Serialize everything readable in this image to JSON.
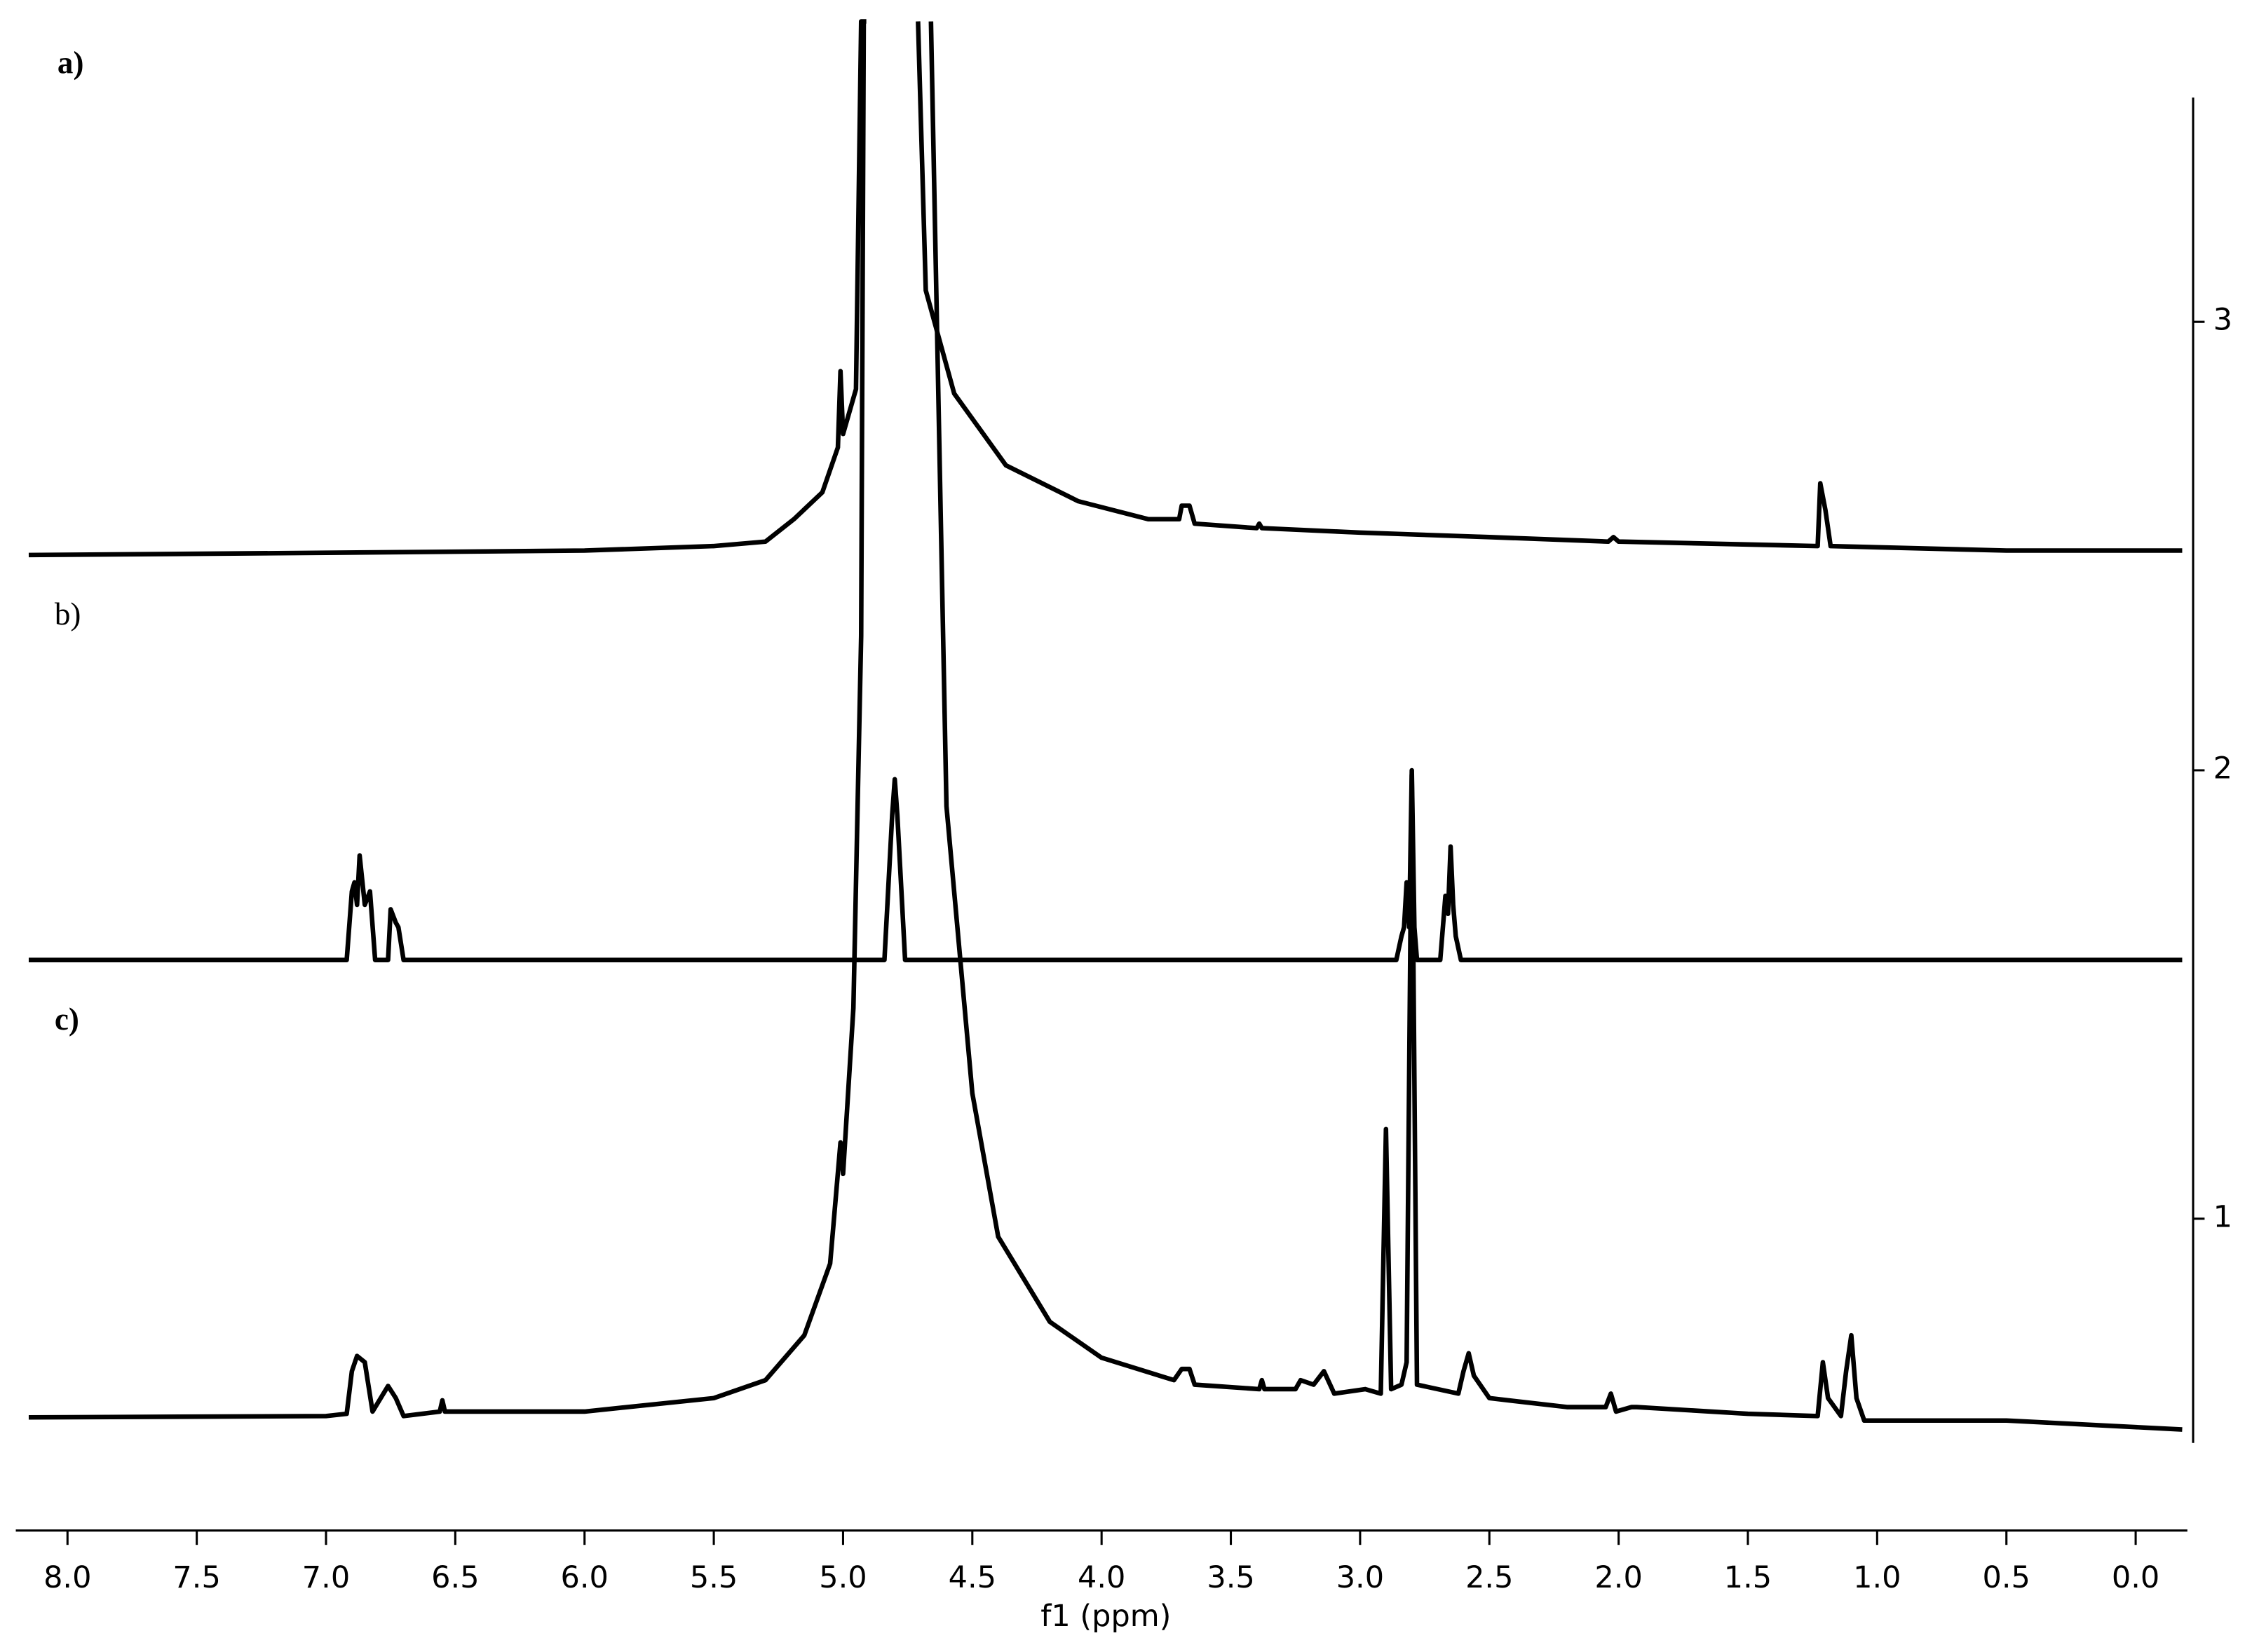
{
  "chart_data": {
    "type": "line",
    "xlabel": "f1 (ppm)",
    "xlim": [
      8.2,
      -0.2
    ],
    "ylim": [
      0.5,
      3.5
    ],
    "yaxis_position": "right",
    "grid": false,
    "xticks": [
      {
        "value": 8,
        "label": "8.0"
      },
      {
        "value": 7.5,
        "label": "7.5"
      },
      {
        "value": 7,
        "label": "7.0"
      },
      {
        "value": 6.5,
        "label": "6.5"
      },
      {
        "value": 6,
        "label": "6.0"
      },
      {
        "value": 5.5,
        "label": "5.5"
      },
      {
        "value": 5,
        "label": "5.0"
      },
      {
        "value": 4.5,
        "label": "4.5"
      },
      {
        "value": 4,
        "label": "4.0"
      },
      {
        "value": 3.5,
        "label": "3.5"
      },
      {
        "value": 3,
        "label": "3.0"
      },
      {
        "value": 2.5,
        "label": "2.5"
      },
      {
        "value": 2,
        "label": "2.0"
      },
      {
        "value": 1.5,
        "label": "1.5"
      },
      {
        "value": 1,
        "label": "1.0"
      },
      {
        "value": 0.5,
        "label": "0.5"
      },
      {
        "value": 0,
        "label": "0.0"
      }
    ],
    "yticks": [
      1,
      2,
      3
    ],
    "series": [
      {
        "name": "a)",
        "color": "#000000",
        "x": [
          8.15,
          7.0,
          6.0,
          5.5,
          5.3,
          5.19,
          5.08,
          5.02,
          5.01,
          5.0,
          4.95,
          4.93,
          4.91,
          4.8,
          4.71,
          4.68,
          4.57,
          4.37,
          4.09,
          3.82,
          3.7,
          3.69,
          3.66,
          3.64,
          3.4,
          3.39,
          3.38,
          3.0,
          2.5,
          2.04,
          2.02,
          2.0,
          1.23,
          1.22,
          1.2,
          1.18,
          0.5,
          -0.18
        ],
        "values": [
          2.48,
          2.485,
          2.49,
          2.5,
          2.51,
          2.56,
          2.62,
          2.72,
          2.89,
          2.75,
          2.85,
          3.67,
          3.67,
          null,
          3.67,
          3.07,
          2.84,
          2.68,
          2.6,
          2.56,
          2.56,
          2.59,
          2.59,
          2.55,
          2.54,
          2.55,
          2.54,
          2.53,
          2.52,
          2.51,
          2.52,
          2.51,
          2.5,
          2.64,
          2.58,
          2.5,
          2.49,
          2.49
        ]
      },
      {
        "name": "b)",
        "color": "#000000",
        "x": [
          8.15,
          6.92,
          6.9,
          6.89,
          6.88,
          6.87,
          6.85,
          6.83,
          6.81,
          6.76,
          6.75,
          6.73,
          6.72,
          6.7,
          4.84,
          4.81,
          4.8,
          4.79,
          4.76,
          2.86,
          2.84,
          2.83,
          2.82,
          2.81,
          2.8,
          2.79,
          2.78,
          2.69,
          2.67,
          2.66,
          2.65,
          2.64,
          2.63,
          2.61,
          -0.18
        ],
        "values": [
          1.577,
          1.577,
          1.73,
          1.75,
          1.7,
          1.81,
          1.7,
          1.73,
          1.577,
          1.577,
          1.69,
          1.66,
          1.65,
          1.577,
          1.577,
          1.9,
          1.98,
          1.9,
          1.577,
          1.577,
          1.63,
          1.65,
          1.75,
          1.65,
          2.0,
          1.65,
          1.577,
          1.577,
          1.72,
          1.68,
          1.83,
          1.7,
          1.63,
          1.577,
          1.577
        ]
      },
      {
        "name": "c)",
        "color": "#000000",
        "x": [
          8.15,
          7.0,
          6.92,
          6.9,
          6.88,
          6.85,
          6.82,
          6.76,
          6.73,
          6.7,
          6.56,
          6.55,
          6.54,
          6.0,
          5.5,
          5.3,
          5.15,
          5.05,
          5.01,
          5.0,
          4.96,
          4.93,
          4.92,
          4.8,
          4.66,
          4.6,
          4.5,
          4.4,
          4.2,
          4.0,
          3.72,
          3.69,
          3.66,
          3.64,
          3.39,
          3.38,
          3.37,
          3.25,
          3.23,
          3.18,
          3.14,
          3.1,
          2.98,
          2.92,
          2.9,
          2.88,
          2.84,
          2.82,
          2.8,
          2.78,
          2.62,
          2.6,
          2.58,
          2.56,
          2.5,
          2.2,
          2.05,
          2.03,
          2.01,
          1.95,
          1.93,
          1.5,
          1.23,
          1.21,
          1.19,
          1.14,
          1.12,
          1.1,
          1.08,
          1.05,
          0.5,
          -0.18
        ],
        "values": [
          0.557,
          0.56,
          0.565,
          0.66,
          0.694,
          0.68,
          0.57,
          0.627,
          0.6,
          0.56,
          0.57,
          0.595,
          0.57,
          0.57,
          0.6,
          0.64,
          0.74,
          0.9,
          1.17,
          1.1,
          1.47,
          2.3,
          3.67,
          null,
          3.67,
          1.92,
          1.28,
          0.96,
          0.77,
          0.69,
          0.64,
          0.665,
          0.665,
          0.63,
          0.62,
          0.64,
          0.62,
          0.62,
          0.64,
          0.63,
          0.66,
          0.61,
          0.62,
          0.61,
          1.2,
          0.62,
          0.63,
          0.68,
          1.99,
          0.63,
          0.61,
          0.66,
          0.7,
          0.65,
          0.6,
          0.58,
          0.58,
          0.61,
          0.57,
          0.58,
          0.58,
          0.565,
          0.56,
          0.68,
          0.6,
          0.56,
          0.66,
          0.74,
          0.6,
          0.55,
          0.55,
          0.53
        ]
      }
    ]
  }
}
